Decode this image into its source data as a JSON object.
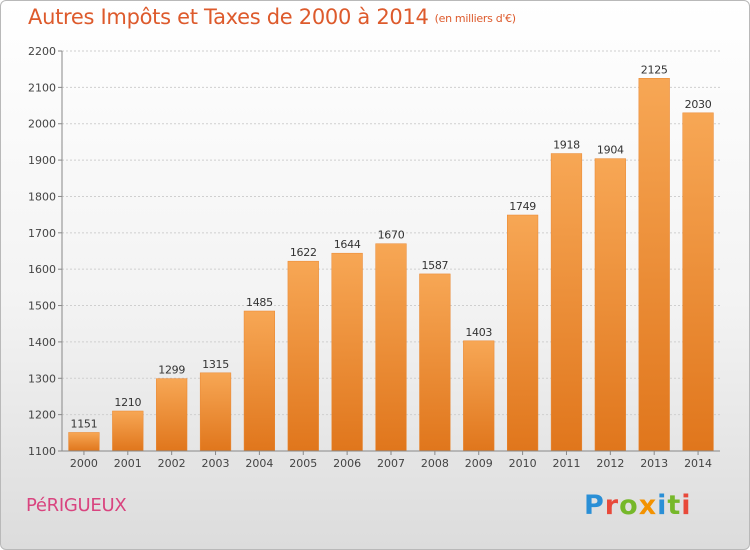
{
  "header": {
    "title": "Autres Impôts et Taxes de 2000 à 2014",
    "unit": "(en milliers d'€)"
  },
  "footer": {
    "commune": "PéRIGUEUX",
    "logo_letters": [
      {
        "char": "P",
        "color": "#2a8fd6"
      },
      {
        "char": "r",
        "color": "#e8493a"
      },
      {
        "char": "o",
        "color": "#76b82a"
      },
      {
        "char": "x",
        "color": "#f39200"
      },
      {
        "char": "i",
        "color": "#2a8fd6"
      },
      {
        "char": "t",
        "color": "#76b82a"
      },
      {
        "char": "i",
        "color": "#e8493a"
      }
    ]
  },
  "chart_data": {
    "type": "bar",
    "title": "Autres Impôts et Taxes de 2000 à 2014",
    "subtitle": "(en milliers d'€)",
    "categories": [
      "2000",
      "2001",
      "2002",
      "2003",
      "2004",
      "2005",
      "2006",
      "2007",
      "2008",
      "2009",
      "2010",
      "2011",
      "2012",
      "2013",
      "2014"
    ],
    "values": [
      1151,
      1210,
      1299,
      1315,
      1485,
      1622,
      1644,
      1670,
      1587,
      1403,
      1749,
      1918,
      1904,
      2125,
      2030
    ],
    "ylim": [
      1100,
      2200
    ],
    "yticks": [
      1100,
      1200,
      1300,
      1400,
      1500,
      1600,
      1700,
      1800,
      1900,
      2000,
      2100,
      2200
    ],
    "grid": true,
    "bar_color_top": "#f7a755",
    "bar_color_bottom": "#e0761c"
  }
}
